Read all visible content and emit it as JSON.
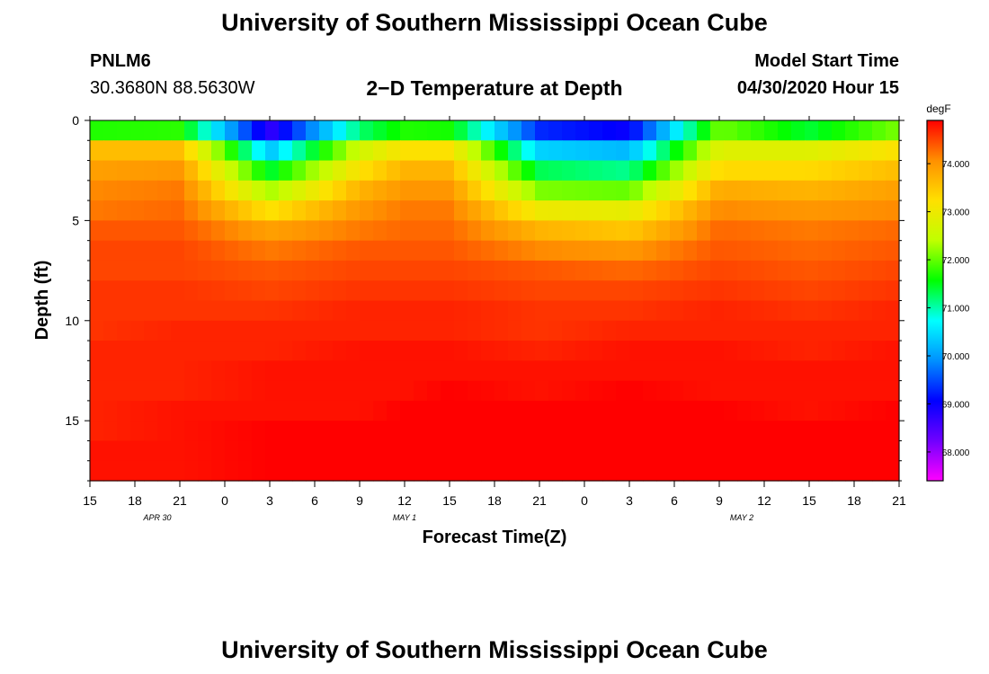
{
  "page_title": "University of Southern Mississippi Ocean Cube",
  "footer_title": "University of Southern Mississippi Ocean Cube",
  "station_id": "PNLM6",
  "coordinates": "30.3680N 88.5630W",
  "model_start_label": "Model Start Time",
  "model_start_value": "04/30/2020 Hour 15",
  "chart_data": {
    "type": "heatmap",
    "title": "2−D Temperature at Depth",
    "xlabel": "Forecast Time(Z)",
    "ylabel": "Depth (ft)",
    "x_tick_labels": [
      "15",
      "18",
      "21",
      "0",
      "3",
      "6",
      "9",
      "12",
      "15",
      "18",
      "21",
      "0",
      "3",
      "6",
      "9",
      "12",
      "15",
      "18",
      "21"
    ],
    "date_labels": [
      {
        "text": "APR 30",
        "tick_index": 1.5
      },
      {
        "text": "MAY 1",
        "tick_index": 7
      },
      {
        "text": "MAY 2",
        "tick_index": 14.5
      }
    ],
    "y_ticks": [
      0,
      5,
      10,
      15
    ],
    "ylim": [
      0,
      18
    ],
    "x_hours_range": [
      0,
      54
    ],
    "colorbar": {
      "unit": "degF",
      "min": 67.4,
      "max": 74.9,
      "ticks": [
        "74.000",
        "73.000",
        "72.000",
        "71.000",
        "70.000",
        "69.000",
        "68.000"
      ],
      "tick_values": [
        74,
        73,
        72,
        71,
        70,
        69,
        68
      ],
      "colors": [
        "#ff00ff",
        "#7000ff",
        "#0000ff",
        "#0090ff",
        "#00ffff",
        "#00ff00",
        "#c0ff00",
        "#ffe000",
        "#ff9000",
        "#ff0000"
      ]
    },
    "depth_levels": [
      0.25,
      0.75,
      1.5,
      2.5,
      3.5,
      4.5,
      5.5,
      6.5,
      7.5,
      8.5,
      9.5,
      10.5,
      11.5,
      12.5,
      13.5,
      14.5,
      15.5,
      16.5,
      17.5
    ],
    "time_hours": [
      0,
      6,
      12,
      18,
      21,
      24,
      30,
      36,
      42,
      48,
      54
    ],
    "temperature_profiles": [
      [
        70.8,
        72.6,
        73.6,
        73.9,
        74.1,
        74.2,
        74.4,
        74.5,
        74.5,
        74.6,
        74.6,
        74.6,
        74.7,
        74.7,
        74.7,
        74.7,
        74.7,
        74.8,
        74.8
      ],
      [
        71.0,
        72.5,
        73.6,
        74.0,
        74.2,
        74.3,
        74.4,
        74.5,
        74.5,
        74.6,
        74.6,
        74.7,
        74.7,
        74.7,
        74.7,
        74.8,
        74.8,
        74.8,
        74.8
      ],
      [
        68.2,
        69.2,
        70.3,
        71.4,
        72.3,
        73.2,
        73.9,
        74.2,
        74.4,
        74.5,
        74.6,
        74.7,
        74.7,
        74.8,
        74.8,
        74.8,
        74.9,
        74.9,
        74.9
      ],
      [
        70.6,
        71.8,
        72.6,
        73.2,
        73.7,
        74.0,
        74.2,
        74.4,
        74.5,
        74.6,
        74.7,
        74.7,
        74.8,
        74.8,
        74.8,
        74.8,
        74.9,
        74.9,
        74.9
      ],
      [
        71.0,
        72.4,
        73.2,
        73.7,
        74.0,
        74.2,
        74.3,
        74.4,
        74.5,
        74.6,
        74.7,
        74.7,
        74.8,
        74.8,
        74.8,
        74.9,
        74.9,
        74.9,
        74.9
      ],
      [
        71.0,
        72.3,
        73.2,
        73.7,
        74.0,
        74.2,
        74.3,
        74.4,
        74.5,
        74.6,
        74.7,
        74.7,
        74.8,
        74.8,
        74.9,
        74.9,
        74.9,
        74.9,
        74.9
      ],
      [
        69.0,
        69.6,
        70.4,
        71.3,
        72.1,
        73.0,
        73.7,
        74.1,
        74.4,
        74.5,
        74.6,
        74.6,
        74.7,
        74.8,
        74.8,
        74.9,
        74.9,
        74.9,
        74.9
      ],
      [
        68.7,
        69.3,
        70.2,
        71.1,
        72.0,
        72.9,
        73.5,
        74.0,
        74.3,
        74.5,
        74.6,
        74.7,
        74.8,
        74.8,
        74.9,
        74.9,
        74.9,
        74.9,
        74.9
      ],
      [
        71.8,
        72.3,
        72.8,
        73.3,
        73.8,
        74.1,
        74.3,
        74.4,
        74.5,
        74.6,
        74.7,
        74.7,
        74.8,
        74.8,
        74.8,
        74.9,
        74.9,
        74.9,
        74.9
      ],
      [
        70.8,
        72.0,
        72.8,
        73.3,
        73.7,
        74.0,
        74.2,
        74.3,
        74.4,
        74.5,
        74.6,
        74.7,
        74.7,
        74.8,
        74.8,
        74.8,
        74.9,
        74.9,
        74.9
      ],
      [
        71.6,
        72.6,
        73.2,
        73.6,
        73.9,
        74.1,
        74.3,
        74.4,
        74.5,
        74.6,
        74.7,
        74.7,
        74.8,
        74.8,
        74.8,
        74.9,
        74.9,
        74.9,
        74.9
      ]
    ]
  }
}
